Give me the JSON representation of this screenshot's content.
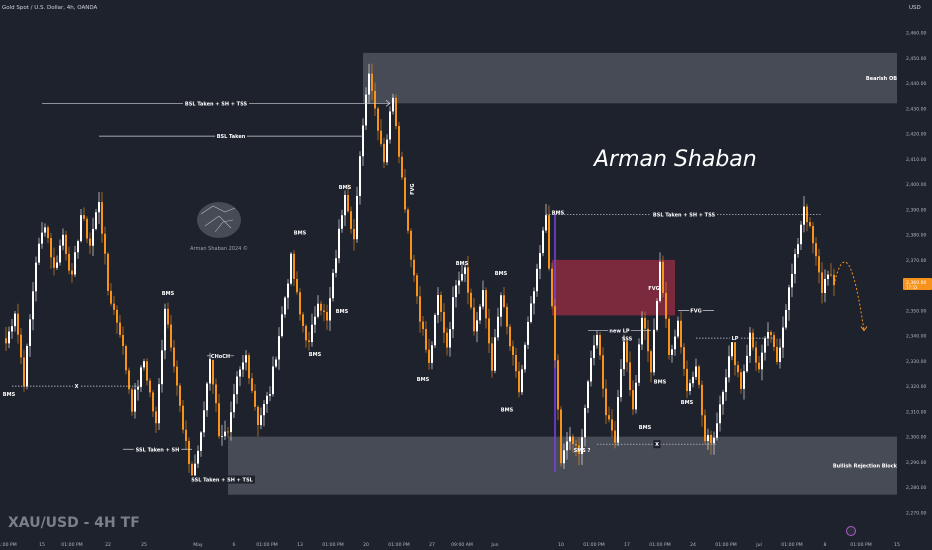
{
  "header": {
    "symbol_line": "Gold Spot / U.S. Dollar, 4h, OANDA"
  },
  "currency_label": "USD",
  "watermark": {
    "title": "XAU/USD - 4H TF",
    "signature": "Arman Shaban",
    "logo_text": "Arman Shaban 2024 ©"
  },
  "colors": {
    "background": "#1e222d",
    "bull_candle": "#ffffff",
    "bear_candle": "#f7931a",
    "zone_grey": "#9598a1",
    "fvg_zone": "#8b2b3f",
    "price_tag": "#f7931a",
    "axis_text": "#b2b5be"
  },
  "price_tag": {
    "value": "2,360.60",
    "sub": "17:52"
  },
  "chart_data": {
    "type": "candlestick",
    "title": "",
    "currency": "USD",
    "ylim": [
      2265,
      2465
    ],
    "y_ticks": [
      2270,
      2280,
      2290,
      2300,
      2310,
      2320,
      2330,
      2340,
      2350,
      2360,
      2370,
      2380,
      2390,
      2400,
      2410,
      2420,
      2430,
      2440,
      2450,
      2460
    ],
    "y_tick_labels": [
      "2,270.00",
      "2,280.00",
      "2,290.00",
      "2,300.00",
      "2,310.00",
      "2,320.00",
      "2,330.00",
      "2,340.00",
      "2,350.00",
      "2,360.00",
      "2,370.00",
      "2,380.00",
      "2,390.00",
      "2,400.00",
      "2,410.00",
      "2,420.00",
      "2,430.00",
      "2,440.00",
      "2,450.00",
      "2,460.00"
    ],
    "x_ticks": [
      {
        "label": "01:00 PM",
        "bar": 0
      },
      {
        "label": "15",
        "bar": 12
      },
      {
        "label": "01:00 PM",
        "bar": 22
      },
      {
        "label": "22",
        "bar": 34
      },
      {
        "label": "25",
        "bar": 46
      },
      {
        "label": "May",
        "bar": 64
      },
      {
        "label": "6",
        "bar": 76
      },
      {
        "label": "01:00 PM",
        "bar": 87
      },
      {
        "label": "13",
        "bar": 98
      },
      {
        "label": "01:00 PM",
        "bar": 109
      },
      {
        "label": "20",
        "bar": 120
      },
      {
        "label": "01:00 PM",
        "bar": 131
      },
      {
        "label": "27",
        "bar": 142
      },
      {
        "label": "09:00 AM",
        "bar": 152
      },
      {
        "label": "Jun",
        "bar": 163
      },
      {
        "label": "10",
        "bar": 185
      },
      {
        "label": "01:00 PM",
        "bar": 196
      },
      {
        "label": "17",
        "bar": 207
      },
      {
        "label": "01:00 PM",
        "bar": 218
      },
      {
        "label": "24",
        "bar": 229
      },
      {
        "label": "01:00 PM",
        "bar": 240
      },
      {
        "label": "Jul",
        "bar": 251
      },
      {
        "label": "01:00 PM",
        "bar": 262
      },
      {
        "label": "8",
        "bar": 273
      },
      {
        "label": "01:00 PM",
        "bar": 285
      },
      {
        "label": "15",
        "bar": 297
      }
    ],
    "key_points": [
      [
        0,
        2337
      ],
      [
        3,
        2350
      ],
      [
        6,
        2322
      ],
      [
        10,
        2370
      ],
      [
        13,
        2385
      ],
      [
        16,
        2366
      ],
      [
        19,
        2380
      ],
      [
        22,
        2362
      ],
      [
        25,
        2388
      ],
      [
        28,
        2376
      ],
      [
        31,
        2394
      ],
      [
        34,
        2358
      ],
      [
        38,
        2342
      ],
      [
        42,
        2312
      ],
      [
        46,
        2330
      ],
      [
        50,
        2304
      ],
      [
        53,
        2352
      ],
      [
        56,
        2330
      ],
      [
        59,
        2302
      ],
      [
        62,
        2284
      ],
      [
        65,
        2300
      ],
      [
        68,
        2332
      ],
      [
        71,
        2302
      ],
      [
        74,
        2300
      ],
      [
        77,
        2322
      ],
      [
        80,
        2332
      ],
      [
        84,
        2306
      ],
      [
        88,
        2318
      ],
      [
        92,
        2348
      ],
      [
        95,
        2370
      ],
      [
        98,
        2348
      ],
      [
        101,
        2336
      ],
      [
        104,
        2355
      ],
      [
        107,
        2345
      ],
      [
        110,
        2372
      ],
      [
        113,
        2398
      ],
      [
        116,
        2378
      ],
      [
        119,
        2425
      ],
      [
        121,
        2446
      ],
      [
        123,
        2430
      ],
      [
        126,
        2410
      ],
      [
        129,
        2436
      ],
      [
        132,
        2402
      ],
      [
        135,
        2372
      ],
      [
        138,
        2348
      ],
      [
        141,
        2328
      ],
      [
        144,
        2355
      ],
      [
        147,
        2336
      ],
      [
        150,
        2362
      ],
      [
        153,
        2368
      ],
      [
        156,
        2342
      ],
      [
        159,
        2356
      ],
      [
        162,
        2328
      ],
      [
        165,
        2356
      ],
      [
        168,
        2336
      ],
      [
        171,
        2318
      ],
      [
        174,
        2344
      ],
      [
        177,
        2364
      ],
      [
        180,
        2388
      ],
      [
        183,
        2330
      ],
      [
        185,
        2290
      ],
      [
        188,
        2300
      ],
      [
        191,
        2292
      ],
      [
        194,
        2322
      ],
      [
        197,
        2342
      ],
      [
        200,
        2310
      ],
      [
        203,
        2300
      ],
      [
        206,
        2340
      ],
      [
        209,
        2310
      ],
      [
        212,
        2348
      ],
      [
        215,
        2326
      ],
      [
        218,
        2370
      ],
      [
        221,
        2332
      ],
      [
        224,
        2346
      ],
      [
        227,
        2318
      ],
      [
        230,
        2330
      ],
      [
        233,
        2298
      ],
      [
        236,
        2300
      ],
      [
        239,
        2320
      ],
      [
        242,
        2336
      ],
      [
        245,
        2320
      ],
      [
        248,
        2340
      ],
      [
        251,
        2326
      ],
      [
        254,
        2342
      ],
      [
        257,
        2330
      ],
      [
        260,
        2352
      ],
      [
        263,
        2370
      ],
      [
        266,
        2392
      ],
      [
        269,
        2376
      ],
      [
        272,
        2358
      ],
      [
        274,
        2366
      ],
      [
        276,
        2360
      ]
    ]
  },
  "zones": [
    {
      "name": "bearish-ob",
      "label": "Bearish OB",
      "bar1": 119,
      "bar2": 297,
      "top": 2452,
      "bottom": 2432,
      "style": "grey"
    },
    {
      "name": "bullish-rejection-block",
      "label": "Bullish Rejection Block",
      "bar1": 74,
      "bar2": 297,
      "top": 2300,
      "bottom": 2277,
      "style": "grey"
    },
    {
      "name": "fvg-box",
      "label": "",
      "bar1": 182,
      "bar2": 223,
      "top": 2370,
      "bottom": 2348,
      "style": "fvg"
    }
  ],
  "annotations": [
    {
      "name": "bsl-taken-sh-tss-top",
      "label": "BSL Taken + SH + TSS",
      "bar1": 12,
      "bar2": 128,
      "y": 2432,
      "arrow": true
    },
    {
      "name": "bsl-taken",
      "label": "BSL Taken",
      "bar1": 31,
      "bar2": 119,
      "y": 2419
    },
    {
      "name": "bsl-taken-sh-tss-right",
      "label": "BSL Taken + SH + TSS",
      "bar1": 180,
      "bar2": 272,
      "y": 2388,
      "dotted": true
    },
    {
      "name": "x-left",
      "label": "X",
      "bar1": 2,
      "bar2": 45,
      "y": 2320,
      "dotted": true
    },
    {
      "name": "x-bottom",
      "label": "X",
      "bar1": 197,
      "bar2": 237,
      "y": 2297,
      "dotted": true
    },
    {
      "name": "ssl-taken-sh",
      "label": "SSL Taken + SH",
      "bar1": 39,
      "bar2": 62,
      "y": 2295
    },
    {
      "name": "ssl-taken-sh-tsl",
      "label": "SSL Taken + SH + TSL",
      "bar1": 62,
      "bar2": 82,
      "y": 2283
    },
    {
      "name": "new-lp",
      "label": "new LP",
      "bar1": 194,
      "bar2": 215,
      "y": 2342
    },
    {
      "name": "lp",
      "label": "LP",
      "bar1": 230,
      "bar2": 256,
      "y": 2339,
      "dotted": true
    },
    {
      "name": "choch",
      "label": "CHoCH",
      "bar1": 67,
      "bar2": 76,
      "y": 2332
    },
    {
      "name": "fvg-label-right",
      "label": "FVG",
      "bar1": 224,
      "bar2": 236,
      "y": 2350
    }
  ],
  "labels": [
    {
      "name": "bms-label",
      "text": "BMS",
      "bar": 1,
      "y": 2316
    },
    {
      "name": "bms-label",
      "text": "BMS",
      "bar": 54,
      "y": 2356
    },
    {
      "name": "bms-label",
      "text": "BMS",
      "bar": 98,
      "y": 2380
    },
    {
      "name": "bms-label",
      "text": "BMS",
      "bar": 103,
      "y": 2332
    },
    {
      "name": "bms-label",
      "text": "BMS",
      "bar": 113,
      "y": 2398
    },
    {
      "name": "bms-label",
      "text": "BMS",
      "bar": 112,
      "y": 2349
    },
    {
      "name": "bms-label",
      "text": "BMS",
      "bar": 139,
      "y": 2322
    },
    {
      "name": "bms-label",
      "text": "BMS",
      "bar": 152,
      "y": 2368
    },
    {
      "name": "bms-label",
      "text": "BMS",
      "bar": 165,
      "y": 2364
    },
    {
      "name": "bms-label",
      "text": "BMS",
      "bar": 167,
      "y": 2310
    },
    {
      "name": "bms-label",
      "text": "BMS",
      "bar": 184,
      "y": 2388
    },
    {
      "name": "bms-label",
      "text": "BMS",
      "bar": 213,
      "y": 2303
    },
    {
      "name": "bms-label",
      "text": "BMS",
      "bar": 218,
      "y": 2321
    },
    {
      "name": "bms-label",
      "text": "BMS",
      "bar": 227,
      "y": 2313
    },
    {
      "name": "fvg-label",
      "text": "FVG",
      "bar": 136,
      "y": 2398,
      "vertical": true
    },
    {
      "name": "fvg-label",
      "text": "FVG",
      "bar": 216,
      "y": 2358
    },
    {
      "name": "sss-label",
      "text": "SSS",
      "bar": 207,
      "y": 2338
    },
    {
      "name": "sms-label",
      "text": "SMS ?",
      "bar": 192,
      "y": 2294
    }
  ],
  "projection": {
    "bar1": 276,
    "y1": 2360,
    "bar2": 286,
    "y2": 2342
  }
}
